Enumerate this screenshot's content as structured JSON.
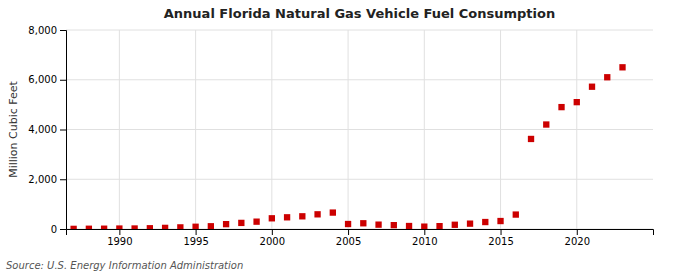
{
  "chart_data": {
    "type": "scatter",
    "title": "Annual Florida Natural Gas Vehicle Fuel Consumption",
    "ylabel": "Million Cubic Feet",
    "source": "Source: U.S. Energy Information Administration",
    "x": [
      1987,
      1988,
      1989,
      1990,
      1991,
      1992,
      1993,
      1994,
      1995,
      1996,
      1997,
      1998,
      1999,
      2000,
      2001,
      2002,
      2003,
      2004,
      2005,
      2006,
      2007,
      2008,
      2009,
      2010,
      2011,
      2012,
      2013,
      2014,
      2015,
      2016,
      2017,
      2018,
      2019,
      2020,
      2021,
      2022,
      2023
    ],
    "values": [
      5,
      10,
      12,
      18,
      20,
      30,
      45,
      65,
      90,
      110,
      195,
      245,
      295,
      430,
      470,
      510,
      590,
      660,
      200,
      230,
      175,
      155,
      120,
      95,
      115,
      170,
      215,
      280,
      320,
      580,
      3620,
      4200,
      4900,
      5100,
      5720,
      6100,
      6500
    ],
    "color": "#cc0000",
    "marker": "square",
    "xlim": [
      1986.5,
      2025
    ],
    "ylim": [
      0,
      8000
    ],
    "xticks": [
      1990,
      1995,
      2000,
      2005,
      2010,
      2015,
      2020
    ],
    "yticks": [
      0,
      {
        "value": 2000,
        "label": "2,000"
      },
      {
        "value": 4000,
        "label": "4,000"
      },
      {
        "value": 6000,
        "label": "6,000"
      },
      {
        "value": 8000,
        "label": "8,000"
      }
    ],
    "grid": true
  }
}
